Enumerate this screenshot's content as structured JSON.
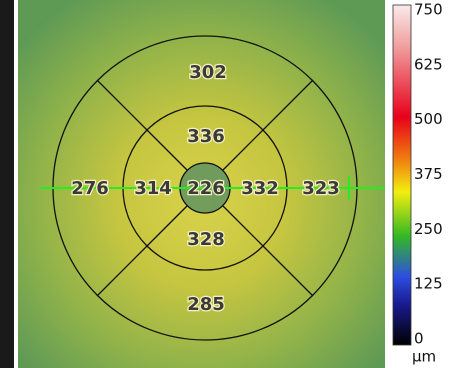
{
  "thickness_map": {
    "center": 226,
    "inner": {
      "superior": 336,
      "nasal": 332,
      "inferior": 328,
      "temporal": 314
    },
    "outer": {
      "superior": 302,
      "nasal": 323,
      "inferior": 285,
      "temporal": 276
    }
  },
  "color_scale": {
    "ticks": [
      750,
      625,
      500,
      375,
      250,
      125,
      0
    ],
    "unit": "µm"
  }
}
